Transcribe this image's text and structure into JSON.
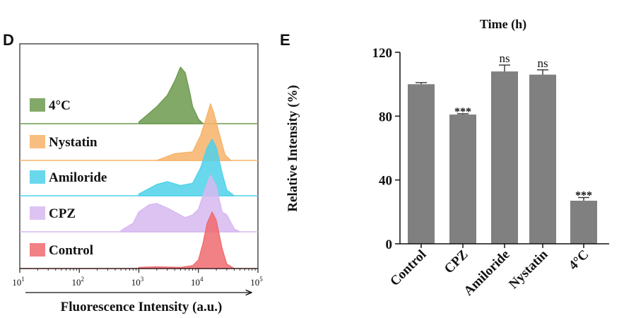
{
  "panel_d": {
    "letter": "D",
    "xlabel": "Fluorescence Intensity (a.u.)",
    "ticks": [
      {
        "base": "10",
        "exp": "1"
      },
      {
        "base": "10",
        "exp": "2"
      },
      {
        "base": "10",
        "exp": "3"
      },
      {
        "base": "10",
        "exp": "4"
      },
      {
        "base": "10",
        "exp": "5"
      }
    ]
  },
  "panel_e": {
    "letter": "E",
    "title": "Time (h)",
    "ylabel": "Relative Intensity (%)",
    "yticks": [
      "0",
      "40",
      "80",
      "120"
    ]
  },
  "chart_data": [
    {
      "type": "area",
      "xscale": "log",
      "xlim": [
        10,
        100000
      ],
      "xlabel": "Fluorescence Intensity (a.u.)",
      "series": [
        {
          "name": "4°C",
          "color": "#6d9a4f",
          "peak_x": 5000,
          "x": [
            1000,
            2000,
            3000,
            4000,
            5000,
            6000,
            7000,
            8000,
            10000,
            12000
          ],
          "y": [
            0.03,
            0.3,
            0.5,
            0.75,
            1.0,
            0.9,
            0.6,
            0.3,
            0.08,
            0.0
          ]
        },
        {
          "name": "Nystatin",
          "color": "#f7b36a",
          "peak_x": 16000,
          "x": [
            2000,
            4000,
            8000,
            11000,
            14000,
            16000,
            18000,
            22000,
            28000,
            35000
          ],
          "y": [
            0.0,
            0.12,
            0.15,
            0.45,
            0.8,
            1.0,
            0.85,
            0.5,
            0.1,
            0.0
          ]
        },
        {
          "name": "Amiloride",
          "color": "#4fd1ea",
          "peak_x": 17000,
          "x": [
            1000,
            2000,
            3000,
            5000,
            8000,
            11000,
            14000,
            17000,
            20000,
            25000,
            30000,
            40000
          ],
          "y": [
            0.03,
            0.2,
            0.25,
            0.18,
            0.22,
            0.5,
            0.85,
            1.0,
            0.85,
            0.4,
            0.1,
            0.0
          ]
        },
        {
          "name": "CPZ",
          "color": "#d7b8f0",
          "peak_x": 16000,
          "x": [
            500,
            800,
            1000,
            1500,
            2000,
            3000,
            4000,
            6000,
            8000,
            10000,
            13000,
            16000,
            20000,
            25000,
            30000,
            40000,
            50000
          ],
          "y": [
            0.02,
            0.15,
            0.35,
            0.48,
            0.5,
            0.42,
            0.35,
            0.25,
            0.3,
            0.4,
            0.75,
            1.0,
            0.8,
            0.35,
            0.3,
            0.05,
            0.0
          ]
        },
        {
          "name": "Control",
          "color": "#f06b70",
          "peak_x": 17000,
          "x": [
            1000,
            2000,
            5000,
            8000,
            10000,
            12000,
            14000,
            17000,
            20000,
            25000,
            30000,
            40000
          ],
          "y": [
            0.02,
            0.03,
            0.02,
            0.05,
            0.15,
            0.45,
            0.8,
            1.0,
            0.85,
            0.35,
            0.08,
            0.0
          ]
        }
      ]
    },
    {
      "type": "bar",
      "title": "Time (h)",
      "ylabel": "Relative Intensity (%)",
      "ylim": [
        0,
        120
      ],
      "yticks": [
        0,
        40,
        80,
        120
      ],
      "categories": [
        "Control",
        "CPZ",
        "Amiloride",
        "Nystatin",
        "4°C"
      ],
      "values": [
        100,
        81,
        108,
        106,
        27
      ],
      "errors": [
        1,
        0.5,
        4,
        3,
        2
      ],
      "significance": [
        "",
        "***",
        "ns",
        "ns",
        "***"
      ],
      "bar_color": "#808080"
    }
  ]
}
